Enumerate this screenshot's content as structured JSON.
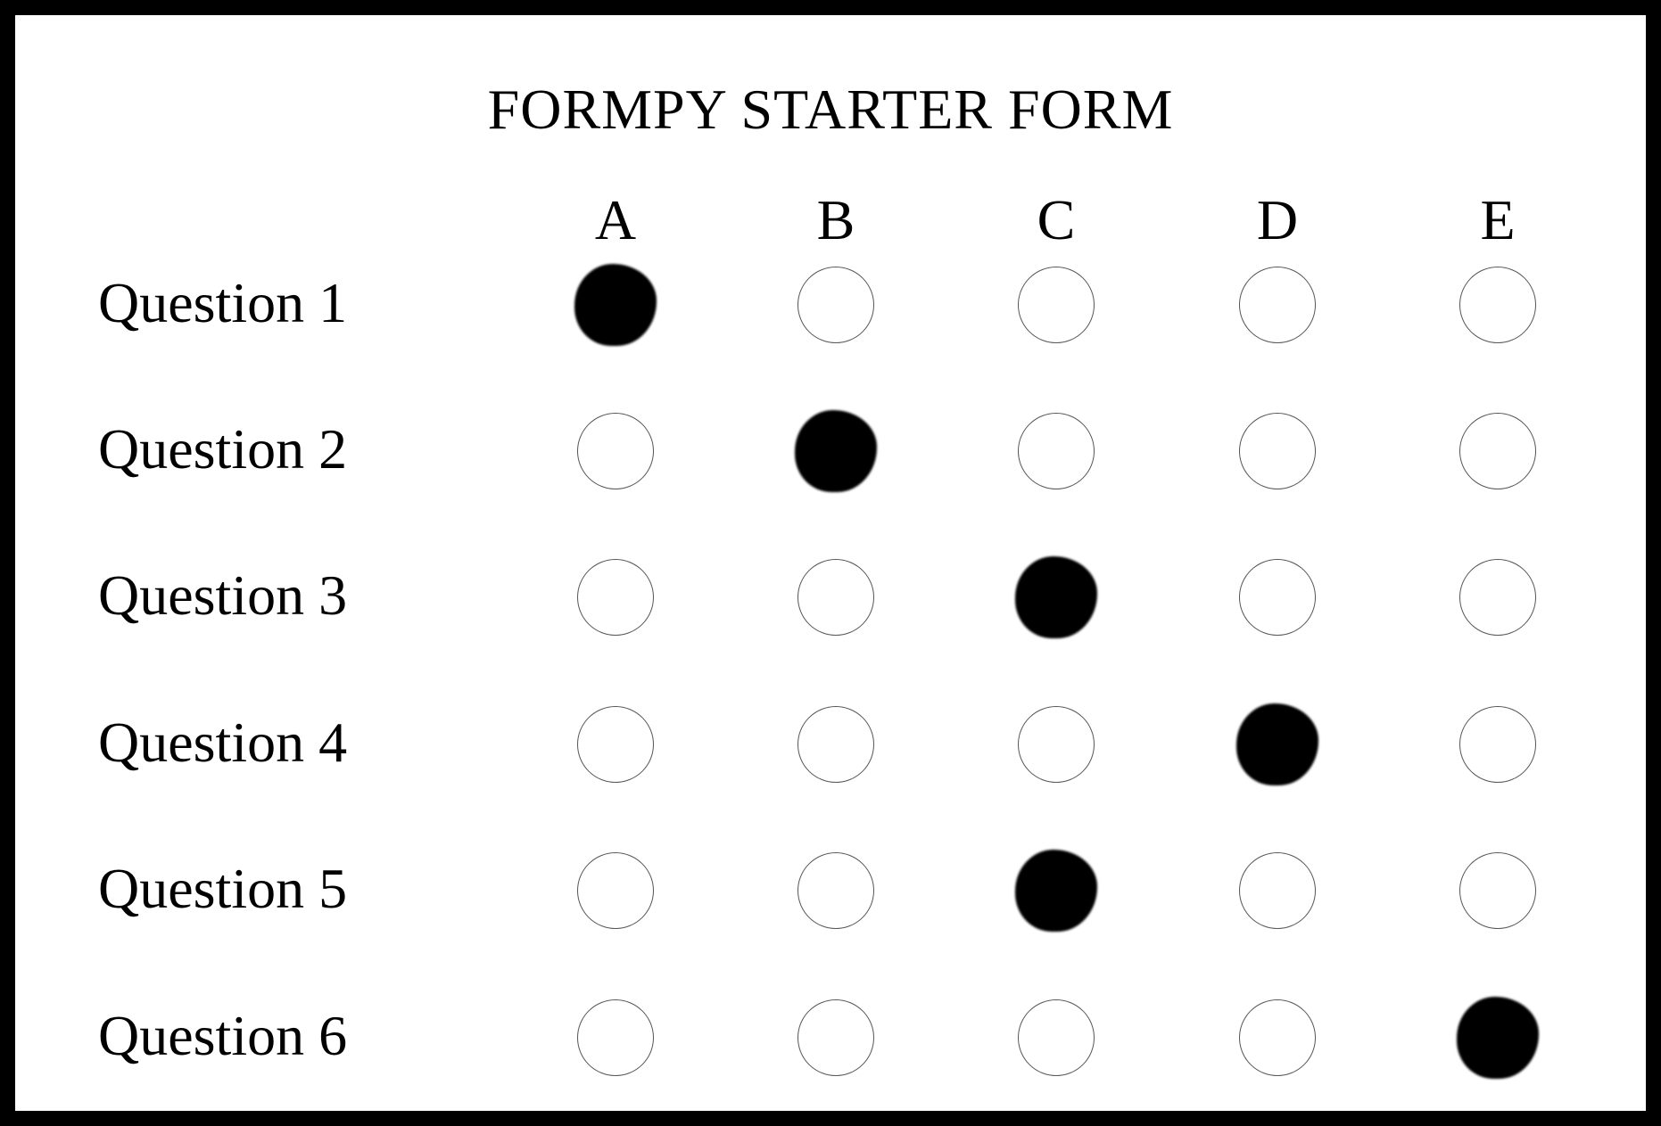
{
  "form": {
    "title": "FORMPY STARTER FORM",
    "options": [
      "A",
      "B",
      "C",
      "D",
      "E"
    ],
    "questions": [
      {
        "label": "Question 1",
        "marked": "A"
      },
      {
        "label": "Question 2",
        "marked": "B"
      },
      {
        "label": "Question 3",
        "marked": "C"
      },
      {
        "label": "Question 4",
        "marked": "D"
      },
      {
        "label": "Question 5",
        "marked": "C"
      },
      {
        "label": "Question 6",
        "marked": "E"
      }
    ]
  }
}
